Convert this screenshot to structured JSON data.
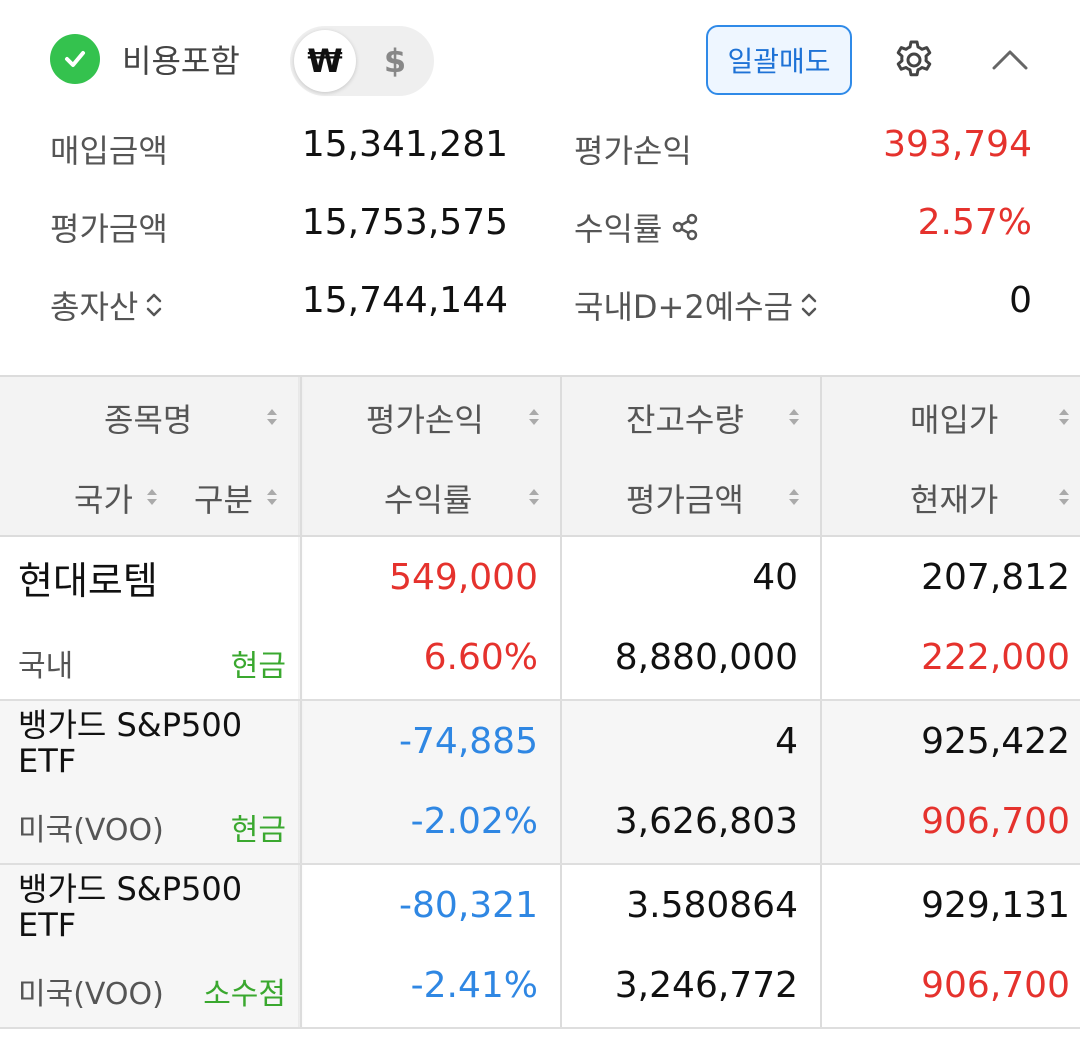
{
  "header": {
    "fee_label": "비용포함",
    "currency": {
      "won": "₩",
      "usd": "$",
      "selected": "₩"
    },
    "bulk_sell_label": "일괄매도",
    "check_color": "#34c24e",
    "accent_color": "#2f8ae8"
  },
  "summary": {
    "purchase_amount": {
      "label": "매입금액",
      "value": "15,341,281"
    },
    "eval_pl": {
      "label": "평가손익",
      "value": "393,794"
    },
    "eval_amount": {
      "label": "평가금액",
      "value": "15,753,575"
    },
    "return_rate": {
      "label": "수익률",
      "value": "2.57%"
    },
    "total_assets": {
      "label": "총자산",
      "value": "15,744,144"
    },
    "d2_deposit": {
      "label": "국내D+2예수금",
      "value": "0"
    }
  },
  "table": {
    "headers": {
      "name": "종목명",
      "country": "국가",
      "category": "구분",
      "eval_pl": "평가손익",
      "return_rate": "수익률",
      "quantity": "잔고수량",
      "eval_amount": "평가금액",
      "avg_price": "매입가",
      "current_price": "현재가"
    },
    "rows": [
      {
        "name": "현대로템",
        "country": "국내",
        "category": "현금",
        "eval_pl": "549,000",
        "return_rate": "6.60%",
        "quantity": "40",
        "eval_amount": "8,880,000",
        "avg_price": "207,812",
        "current_price": "222,000"
      },
      {
        "name_line1": "뱅가드 S&P500",
        "name_line2": "ETF",
        "country": "미국(VOO)",
        "category": "현금",
        "eval_pl": "-74,885",
        "return_rate": "-2.02%",
        "quantity": "4",
        "eval_amount": "3,626,803",
        "avg_price": "925,422",
        "current_price": "906,700"
      },
      {
        "name_line1": "뱅가드 S&P500",
        "name_line2": "ETF",
        "country": "미국(VOO)",
        "category": "소수점",
        "eval_pl": "-80,321",
        "return_rate": "-2.41%",
        "quantity": "3.580864",
        "eval_amount": "3,246,772",
        "avg_price": "929,131",
        "current_price": "906,700"
      }
    ]
  }
}
